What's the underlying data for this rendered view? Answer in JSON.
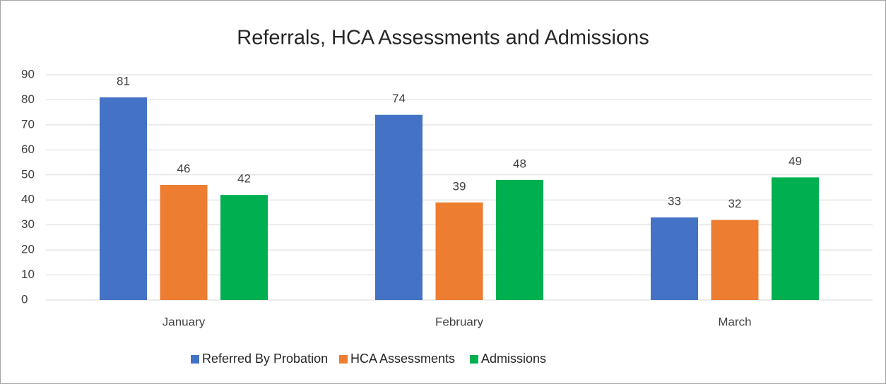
{
  "chart_data": {
    "type": "bar",
    "title": "Referrals, HCA Assessments and Admissions",
    "categories": [
      "January",
      "February",
      "March"
    ],
    "series": [
      {
        "name": "Referred By Probation",
        "color": "#4472c4",
        "values": [
          81,
          74,
          33
        ]
      },
      {
        "name": "HCA Assessments",
        "color": "#ed7d31",
        "values": [
          46,
          39,
          32
        ]
      },
      {
        "name": "Admissions",
        "color": "#00b050",
        "values": [
          42,
          48,
          49
        ]
      }
    ],
    "ylim": [
      0,
      90
    ],
    "yticks": [
      0,
      10,
      20,
      30,
      40,
      50,
      60,
      70,
      80,
      90
    ],
    "grid": true,
    "legend": "bottom"
  }
}
